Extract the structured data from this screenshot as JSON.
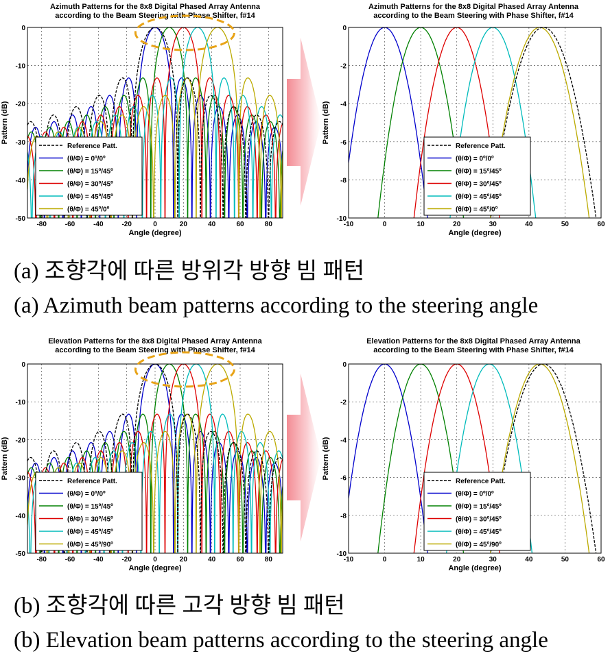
{
  "captions": [
    "(a) 조향각에 따른 방위각 방향 빔 패턴",
    "(a) Azimuth beam patterns according to the steering angle",
    "(b) 조향각에 따른 고각 방향 빔 패턴",
    "(b) Elevation beam patterns according to the steering angle"
  ],
  "chart_data": [
    {
      "type": "line",
      "panel": "a-left",
      "title": [
        "Azimuth Patterns for the 8x8 Digital Phased Array Antenna",
        "according to the Beam Steering with Phase Shifter, f#14"
      ],
      "xlabel": "Angle (degree)",
      "ylabel": "Pattern (dB)",
      "xlim": [
        -90,
        90
      ],
      "ylim": [
        -50,
        0
      ],
      "xticks": [
        -80,
        -60,
        -40,
        -20,
        0,
        20,
        40,
        60,
        80
      ],
      "yticks": [
        0,
        -10,
        -20,
        -30,
        -40,
        -50
      ],
      "grid": true,
      "legend_position": "bottom-left",
      "highlight_ellipse": true,
      "series": [
        {
          "name": "Reference Patt.",
          "peak": 0,
          "color": "#000000",
          "dashed": true,
          "width": 16
        },
        {
          "name": "(θ/Φ) = 0º/0º",
          "peak": 0,
          "color": "#0000cc",
          "width": 13
        },
        {
          "name": "(θ/Φ) = 15º/45º",
          "peak": 10,
          "color": "#008000",
          "width": 13
        },
        {
          "name": "(θ/Φ) = 30º/45º",
          "peak": 20,
          "color": "#dd0000",
          "width": 13
        },
        {
          "name": "(θ/Φ) = 45º/45º",
          "peak": 30,
          "color": "#00bbbb",
          "width": 13
        },
        {
          "name": "(θ/Φ) = 45º/0º",
          "peak": 44,
          "color": "#bbaa00",
          "width": 15
        }
      ]
    },
    {
      "type": "line",
      "panel": "a-right",
      "title": [
        "Azimuth Patterns for the 8x8 Digital Phased Array Antenna",
        "according to the Beam Steering with Phase Shifter, f#14"
      ],
      "xlabel": "Angle (degree)",
      "ylabel": "Pattern (dB)",
      "xlim": [
        -10,
        60
      ],
      "ylim": [
        -10,
        0
      ],
      "xticks": [
        -10,
        0,
        10,
        20,
        30,
        40,
        50,
        60
      ],
      "yticks": [
        0,
        -2,
        -4,
        -6,
        -8,
        -10
      ],
      "grid": true,
      "legend_position": "bottom-right",
      "series": [
        {
          "name": "Reference Patt.",
          "peak": 44,
          "color": "#000000",
          "dashed": true,
          "width": 16
        },
        {
          "name": "(θ/Φ) = 0º/0º",
          "peak": 0,
          "color": "#0000cc",
          "width": 13
        },
        {
          "name": "(θ/Φ) = 15º/45º",
          "peak": 10,
          "color": "#008000",
          "width": 13
        },
        {
          "name": "(θ/Φ) = 30º/45º",
          "peak": 20,
          "color": "#dd0000",
          "width": 13
        },
        {
          "name": "(θ/Φ) = 45º/45º",
          "peak": 30,
          "color": "#00bbbb",
          "width": 13
        },
        {
          "name": "(θ/Φ) = 45º/0º",
          "peak": 43,
          "color": "#bbaa00",
          "width": 15
        }
      ]
    },
    {
      "type": "line",
      "panel": "b-left",
      "title": [
        "Elevation Patterns for the 8x8 Digital Phased Array Antenna",
        "according to the Beam Steering with Phase Shifter, f#14"
      ],
      "xlabel": "Angle (degree)",
      "ylabel": "Pattern (dB)",
      "xlim": [
        -90,
        90
      ],
      "ylim": [
        -50,
        0
      ],
      "xticks": [
        -80,
        -60,
        -40,
        -20,
        0,
        20,
        40,
        60,
        80
      ],
      "yticks": [
        0,
        -10,
        -20,
        -30,
        -40,
        -50
      ],
      "grid": true,
      "legend_position": "bottom-left",
      "highlight_ellipse": true,
      "series": [
        {
          "name": "Reference Patt.",
          "peak": 0,
          "color": "#000000",
          "dashed": true,
          "width": 16
        },
        {
          "name": "(θ/Φ) = 0º/0º",
          "peak": 0,
          "color": "#0000cc",
          "width": 13
        },
        {
          "name": "(θ/Φ) = 15º/45º",
          "peak": 10,
          "color": "#008000",
          "width": 13
        },
        {
          "name": "(θ/Φ) = 30º/45º",
          "peak": 20,
          "color": "#dd0000",
          "width": 13
        },
        {
          "name": "(θ/Φ) = 45º/45º",
          "peak": 29,
          "color": "#00bbbb",
          "width": 13
        },
        {
          "name": "(θ/Φ) = 45º/90º",
          "peak": 44,
          "color": "#bbaa00",
          "width": 15
        }
      ]
    },
    {
      "type": "line",
      "panel": "b-right",
      "title": [
        "Elevation Patterns for the 8x8 Digital Phased Array Antenna",
        "according to the Beam Steering with Phase Shifter, f#14"
      ],
      "xlabel": "Angle (degree)",
      "ylabel": "Pattern (dB)",
      "xlim": [
        -10,
        60
      ],
      "ylim": [
        -10,
        0
      ],
      "xticks": [
        -10,
        0,
        10,
        20,
        30,
        40,
        50,
        60
      ],
      "yticks": [
        0,
        -2,
        -4,
        -6,
        -8,
        -10
      ],
      "grid": true,
      "legend_position": "bottom-right",
      "series": [
        {
          "name": "Reference Patt.",
          "peak": 44,
          "color": "#000000",
          "dashed": true,
          "width": 16
        },
        {
          "name": "(θ/Φ) = 0º/0º",
          "peak": 0,
          "color": "#0000cc",
          "width": 13
        },
        {
          "name": "(θ/Φ) = 15º/45º",
          "peak": 10,
          "color": "#008000",
          "width": 13
        },
        {
          "name": "(θ/Φ) = 30º/45º",
          "peak": 20,
          "color": "#dd0000",
          "width": 13
        },
        {
          "name": "(θ/Φ) = 45º/45º",
          "peak": 29,
          "color": "#00bbbb",
          "width": 13
        },
        {
          "name": "(θ/Φ) = 45º/90º",
          "peak": 43,
          "color": "#bbaa00",
          "width": 15
        }
      ]
    }
  ]
}
